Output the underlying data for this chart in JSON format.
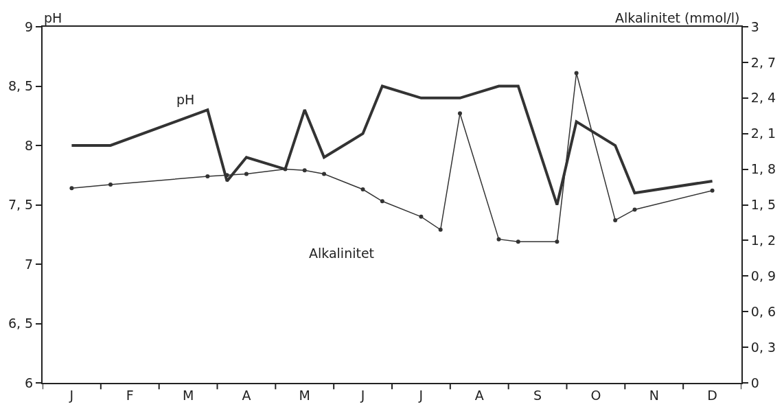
{
  "chart_data": {
    "type": "line",
    "ylabel": "pH",
    "y2label": "Alkalinitet (mmol/l)",
    "categories": [
      null,
      "J",
      null,
      null,
      "F",
      null,
      null,
      "M",
      null,
      null,
      "A",
      null,
      null,
      "M",
      null,
      null,
      "J",
      null,
      null,
      "J",
      null,
      null,
      "A",
      null,
      null,
      "S",
      null,
      null,
      "O",
      null,
      null,
      "N",
      null,
      null,
      "D",
      null
    ],
    "ylim": [
      6,
      9
    ],
    "yticks": [
      6,
      {
        "value": 6.5,
        "label": "6, 5"
      },
      7,
      {
        "value": 7.5,
        "label": "7, 5"
      },
      8,
      {
        "value": 8.5,
        "label": "8, 5"
      },
      9
    ],
    "y2lim": [
      0,
      3
    ],
    "y2ticks": [
      0,
      {
        "value": 0.3,
        "label": "0, 3"
      },
      {
        "value": 0.6,
        "label": "0, 6"
      },
      {
        "value": 0.9,
        "label": "0, 9"
      },
      {
        "value": 1.2,
        "label": "1, 2"
      },
      {
        "value": 1.5,
        "label": "1, 5"
      },
      {
        "value": 1.8,
        "label": "1, 8"
      },
      {
        "value": 2.1,
        "label": "2, 1"
      },
      {
        "value": 2.4,
        "label": "2, 4"
      },
      {
        "value": 2.7,
        "label": "2, 7"
      },
      3
    ],
    "series": [
      {
        "color": "#333333",
        "marker": "none",
        "values": [
          null,
          8.0,
          null,
          8.0,
          null,
          null,
          null,
          null,
          8.3,
          7.7,
          7.9,
          null,
          7.8,
          8.3,
          7.9,
          null,
          8.1,
          8.5,
          null,
          8.4,
          null,
          8.4,
          null,
          8.5,
          8.5,
          null,
          7.5,
          8.2,
          null,
          8.0,
          7.6,
          null,
          null,
          null,
          7.7,
          null
        ]
      },
      {
        "color": "#333333",
        "marker": "circle",
        "axis": "y2",
        "values": [
          null,
          1.64,
          null,
          1.67,
          null,
          null,
          null,
          null,
          1.74,
          1.75,
          1.76,
          null,
          1.8,
          1.79,
          1.76,
          null,
          1.63,
          1.53,
          null,
          1.4,
          1.29,
          2.27,
          null,
          1.21,
          1.19,
          null,
          1.19,
          2.61,
          null,
          1.37,
          1.46,
          null,
          null,
          null,
          1.62,
          null
        ]
      }
    ],
    "annotations": [
      "pH",
      "Alkalinitet"
    ]
  }
}
